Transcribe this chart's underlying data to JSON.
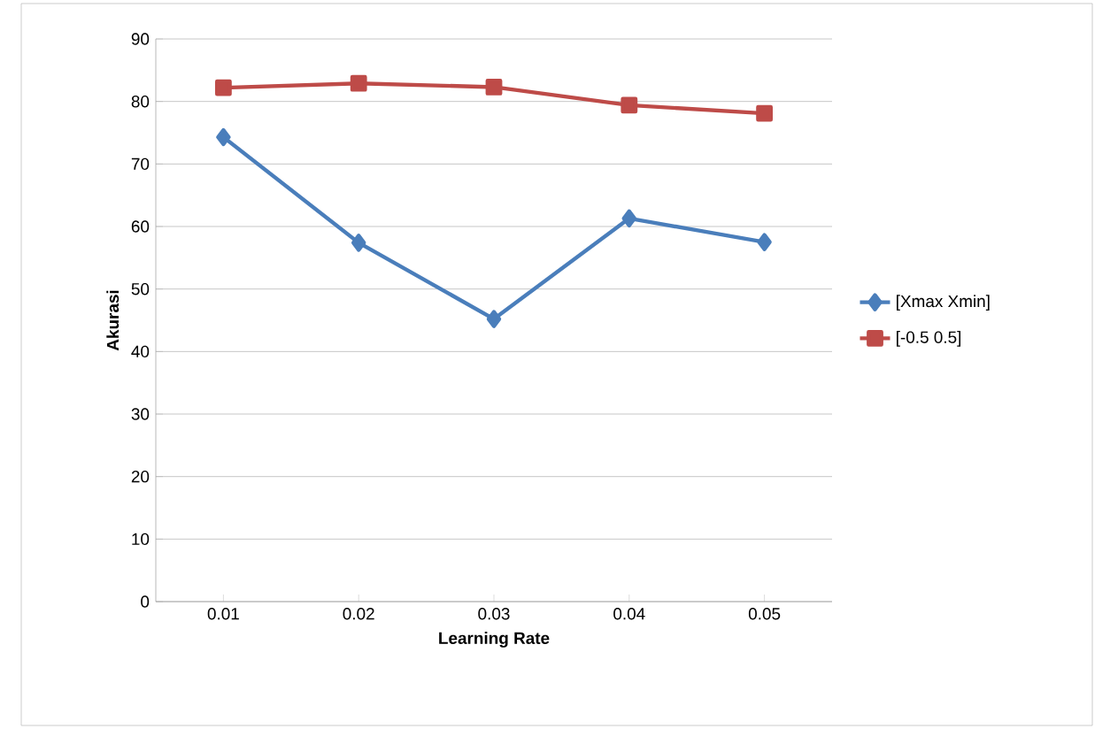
{
  "chart_data": {
    "type": "line",
    "xlabel": "Learning Rate",
    "ylabel": "Akurasi",
    "categories": [
      "0.01",
      "0.02",
      "0.03",
      "0.04",
      "0.05"
    ],
    "series": [
      {
        "name": "[Xmax Xmin]",
        "color": "#4a7ebb",
        "marker": "diamond",
        "values": [
          74.3,
          57.4,
          45.2,
          61.3,
          57.5
        ]
      },
      {
        "name": "[-0.5 0.5]",
        "color": "#be4b48",
        "marker": "square",
        "values": [
          82.2,
          82.9,
          82.3,
          79.4,
          78.1
        ]
      }
    ],
    "ylim": [
      0,
      90
    ],
    "yticks": [
      0,
      10,
      20,
      30,
      40,
      50,
      60,
      70,
      80,
      90
    ],
    "grid": "y",
    "legend": "right",
    "line_style": "solid"
  }
}
